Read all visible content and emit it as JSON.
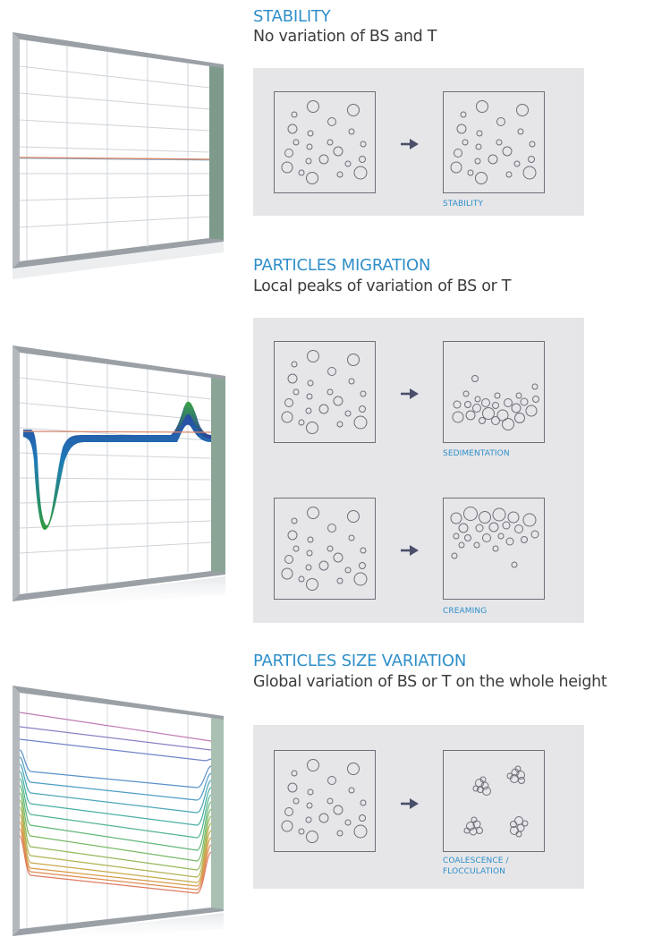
{
  "sections": [
    {
      "title": "STABILITY",
      "subtitle": "No variation of BS and T",
      "chart_type": "flat-profile",
      "rows": [
        {
          "from": "random-dispersion",
          "to": "random-dispersion",
          "caption": "STABILITY"
        }
      ]
    },
    {
      "title": "PARTICLES MIGRATION",
      "subtitle": "Local peaks of variation of BS or T",
      "chart_type": "peak-profile",
      "rows": [
        {
          "from": "random-dispersion",
          "to": "settled-bottom",
          "caption": "SEDIMENTATION"
        },
        {
          "from": "random-dispersion",
          "to": "risen-top",
          "caption": "CREAMING"
        }
      ]
    },
    {
      "title": "PARTICLES SIZE VARIATION",
      "subtitle": "Global variation of BS or T on the whole height",
      "chart_type": "global-shift-profile",
      "rows": [
        {
          "from": "random-dispersion",
          "to": "clusters",
          "caption_lines": [
            "COALESCENCE /",
            "FLOCCULATION"
          ]
        }
      ]
    }
  ],
  "colors": {
    "heading": "#2f8fc9",
    "subtitle": "#3c3c3c",
    "panel": "#e6e6e9",
    "outline": "#6e6e78",
    "arrow": "#4a4f6a"
  },
  "icons": [
    "right-arrow-icon"
  ]
}
